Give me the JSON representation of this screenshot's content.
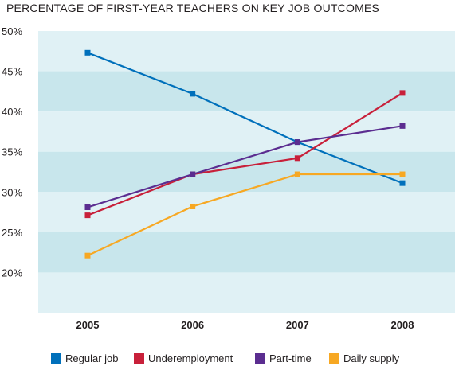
{
  "chart_data": {
    "type": "line",
    "title": "PERCENTAGE OF FIRST-YEAR TEACHERS ON KEY JOB OUTCOMES",
    "categories": [
      "2005",
      "2006",
      "2007",
      "2008"
    ],
    "y_ticks": [
      "50%",
      "45%",
      "40%",
      "35%",
      "30%",
      "25%",
      "20%"
    ],
    "y_tick_values": [
      50,
      45,
      40,
      35,
      30,
      25,
      20
    ],
    "ylim": [
      15,
      50
    ],
    "grid": "alternating horizontal bands",
    "legend_position": "bottom",
    "band_colors": [
      "#e0f1f5",
      "#c8e6ec"
    ],
    "series": [
      {
        "name": "Regular job",
        "color": "#0070bb",
        "values": [
          47.3,
          42.2,
          36.2,
          31.1
        ]
      },
      {
        "name": "Underemployment",
        "color": "#c8203a",
        "values": [
          27.1,
          32.2,
          34.2,
          42.3
        ]
      },
      {
        "name": "Part-time",
        "color": "#5b2d90",
        "values": [
          28.1,
          32.2,
          36.2,
          38.2
        ]
      },
      {
        "name": "Daily supply",
        "color": "#f7a823",
        "values": [
          22.1,
          28.2,
          32.2,
          32.2
        ]
      }
    ]
  }
}
